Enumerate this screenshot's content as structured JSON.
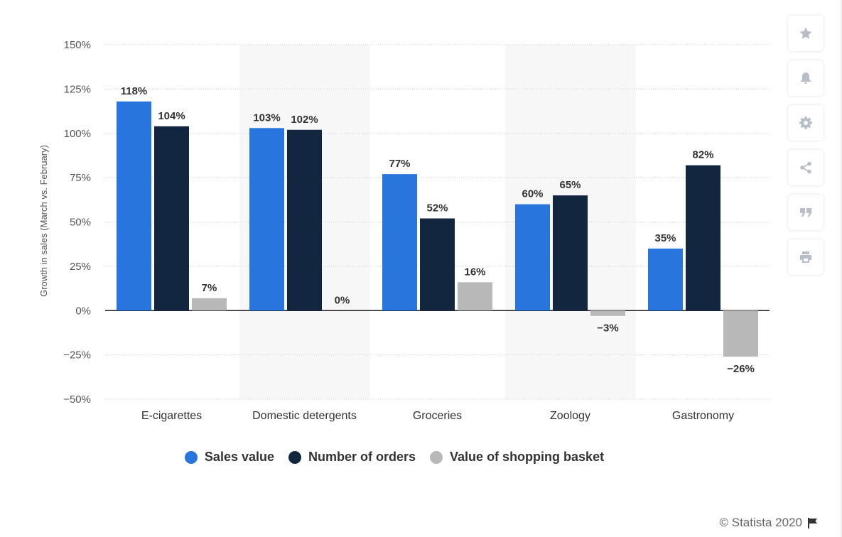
{
  "chart_data": {
    "type": "bar",
    "ylabel": "Growth in sales (March vs. February)",
    "ylim": [
      -50,
      150
    ],
    "yticks": [
      150,
      125,
      100,
      75,
      50,
      25,
      0,
      -25,
      -50
    ],
    "ytick_labels": [
      "150%",
      "125%",
      "100%",
      "75%",
      "50%",
      "25%",
      "0%",
      "−25%",
      "−50%"
    ],
    "categories": [
      "E-cigarettes",
      "Domestic detergents",
      "Groceries",
      "Zoology",
      "Gastronomy"
    ],
    "series": [
      {
        "name": "Sales value",
        "color": "#2876dd",
        "values": [
          118,
          103,
          77,
          60,
          35
        ],
        "labels": [
          "118%",
          "103%",
          "77%",
          "60%",
          "35%"
        ]
      },
      {
        "name": "Number of orders",
        "color": "#12263f",
        "values": [
          104,
          102,
          52,
          65,
          82
        ],
        "labels": [
          "104%",
          "102%",
          "52%",
          "65%",
          "82%"
        ]
      },
      {
        "name": "Value of shopping basket",
        "color": "#b8b8b8",
        "values": [
          7,
          0,
          16,
          -3,
          -26
        ],
        "labels": [
          "7%",
          "0%",
          "16%",
          "−3%",
          "−26%"
        ]
      }
    ],
    "grid": true,
    "legend_position": "bottom"
  },
  "legend": {
    "items": [
      {
        "label": "Sales value",
        "color": "#2876dd"
      },
      {
        "label": "Number of orders",
        "color": "#12263f"
      },
      {
        "label": "Value of shopping basket",
        "color": "#b8b8b8"
      }
    ]
  },
  "toolbar": {
    "buttons": [
      {
        "icon": "star-icon"
      },
      {
        "icon": "bell-icon"
      },
      {
        "icon": "gear-icon"
      },
      {
        "icon": "share-icon"
      },
      {
        "icon": "quote-icon"
      },
      {
        "icon": "print-icon"
      }
    ]
  },
  "credit": {
    "text": "© Statista 2020",
    "icon": "flag-icon"
  }
}
